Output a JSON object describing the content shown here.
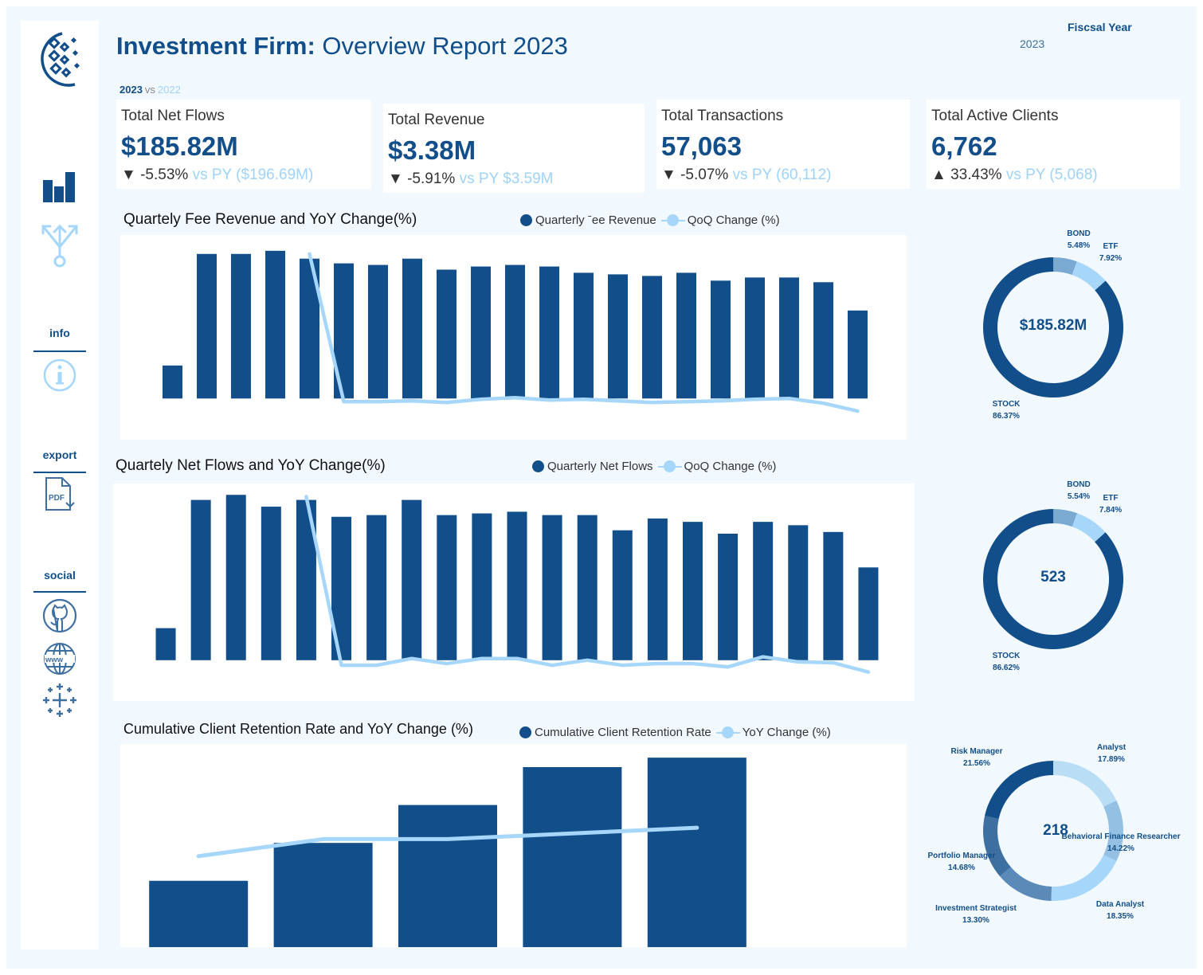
{
  "header": {
    "title_bold": "Investment Firm:",
    "title_rest": " Overview Report ",
    "title_year": "2023",
    "compare_current": "2023",
    "compare_vs": "vs",
    "compare_previous": "2022",
    "fiscal_year_label": "Fiscsal Year",
    "fiscal_year_value": "2023"
  },
  "sidebar": {
    "logo": "company-logo-icon",
    "nav_icons": [
      "bar-chart-icon",
      "branch-arrows-icon"
    ],
    "sections": [
      {
        "label": "info",
        "icons": [
          "info-icon"
        ]
      },
      {
        "label": "export",
        "icons": [
          "pdf-download-icon"
        ]
      },
      {
        "label": "social",
        "icons": [
          "github-icon",
          "globe-www-icon",
          "tableau-icon"
        ]
      }
    ]
  },
  "kpis": [
    {
      "label": "Total Net Flows",
      "value": "$185.82M",
      "arrow": "▼",
      "change": "-5.53%",
      "vs_py": "vs PY ($196.69M)"
    },
    {
      "label": "Total Revenue",
      "value": "$3.38M",
      "arrow": "▼",
      "change": "-5.91%",
      "vs_py": "vs PY $3.59M"
    },
    {
      "label": "Total Transactions",
      "value": "57,063",
      "arrow": "▼",
      "change": "-5.07%",
      "vs_py": "vs PY (60,112)"
    },
    {
      "label": "Total Active Clients",
      "value": "6,762",
      "arrow": "▲",
      "change": "33.43%",
      "vs_py": "vs PY (5,068)"
    }
  ],
  "colors": {
    "primary": "#124e89",
    "line": "#a6d7fb",
    "bond": "#7aa9d2",
    "etf": "#a6d7fb"
  },
  "chart_data": [
    {
      "type": "bar",
      "title": "Quartely Fee Revenue and YoY Change(%)",
      "legend": [
        "Quarterly Fee Revenue",
        "QoQ Change (%)"
      ],
      "legend_display": [
        "Quarterly ˉee Revenue",
        "QoQ Change (%)"
      ],
      "series": [
        {
          "name": "Quarterly Fee Revenue",
          "kind": "bar",
          "values": [
            21,
            92,
            92,
            94,
            89,
            86,
            85,
            89,
            82,
            84,
            85,
            84,
            80,
            79,
            78,
            80,
            75,
            77,
            77,
            74,
            56
          ]
        },
        {
          "name": "QoQ Change (%)",
          "kind": "line",
          "start_index": 4,
          "values": [
            92,
            -2,
            -2,
            -1.5,
            -2.5,
            -0.5,
            0.5,
            -1,
            -0.5,
            -1.5,
            -2.5,
            -2,
            -1.5,
            -0.5,
            0,
            -3,
            -8
          ]
        }
      ],
      "ylim": [
        -10,
        100
      ]
    },
    {
      "type": "bar",
      "title": "Quartely Net Flows and YoY Change(%)",
      "legend": [
        "Quarterly Net Flows",
        "QoQ Change (%)"
      ],
      "series": [
        {
          "name": "Quarterly Net Flows",
          "kind": "bar",
          "values": [
            19,
            95,
            98,
            91,
            95,
            85,
            86,
            95,
            86,
            87,
            88,
            86,
            86,
            77,
            84,
            82,
            75,
            82,
            80,
            76,
            55
          ]
        },
        {
          "name": "QoQ Change (%)",
          "kind": "line",
          "start_index": 4,
          "values": [
            97,
            -3,
            -3,
            1,
            -2,
            1,
            1,
            -3,
            0,
            -3,
            -2,
            -2,
            -4,
            2,
            -1,
            -1.5,
            -7
          ]
        }
      ],
      "ylim": [
        -10,
        100
      ]
    },
    {
      "type": "bar",
      "title": "Cumulative Client Retention Rate and YoY Change (%)",
      "legend": [
        "Cumulative Client Retention Rate",
        "YoY Change (%)"
      ],
      "series": [
        {
          "name": "Cumulative Client Retention Rate",
          "kind": "bar",
          "values": [
            35,
            55,
            75,
            95,
            100
          ]
        },
        {
          "name": "YoY Change (%)",
          "kind": "line",
          "start_index": 0,
          "values": [
            48,
            57,
            57,
            60,
            63
          ]
        }
      ],
      "ylim": [
        0,
        103
      ]
    },
    {
      "type": "pie",
      "subtype": "donut",
      "center_text": "$185.82M",
      "slices": [
        {
          "label": "BOND",
          "value": 5.48,
          "display": "5.48%"
        },
        {
          "label": "ETF",
          "value": 7.92,
          "display": "7.92%"
        },
        {
          "label": "STOCK",
          "value": 86.37,
          "display": "86.37%"
        }
      ]
    },
    {
      "type": "pie",
      "subtype": "donut",
      "center_text": "523",
      "slices": [
        {
          "label": "BOND",
          "value": 5.54,
          "display": "5.54%"
        },
        {
          "label": "ETF",
          "value": 7.84,
          "display": "7.84%"
        },
        {
          "label": "STOCK",
          "value": 86.62,
          "display": "86.62%"
        }
      ]
    },
    {
      "type": "pie",
      "subtype": "donut",
      "center_text": "218",
      "slices": [
        {
          "label": "Analyst",
          "value": 17.89,
          "display": "17.89%",
          "color": "#b9ddf5"
        },
        {
          "label": "Behavioral Finance Researcher",
          "value": 14.22,
          "display": "14.22%",
          "color": "#94c1e3"
        },
        {
          "label": "Data Analyst",
          "value": 18.35,
          "display": "18.35%",
          "color": "#a6d7fb"
        },
        {
          "label": "Investment Strategist",
          "value": 13.3,
          "display": "13.30%",
          "color": "#5b8ab8"
        },
        {
          "label": "Portfolio Manager",
          "value": 14.68,
          "display": "14.68%",
          "color": "#3e6fa1"
        },
        {
          "label": "Risk Manager",
          "value": 21.56,
          "display": "21.56%",
          "color": "#124e89"
        }
      ]
    }
  ]
}
